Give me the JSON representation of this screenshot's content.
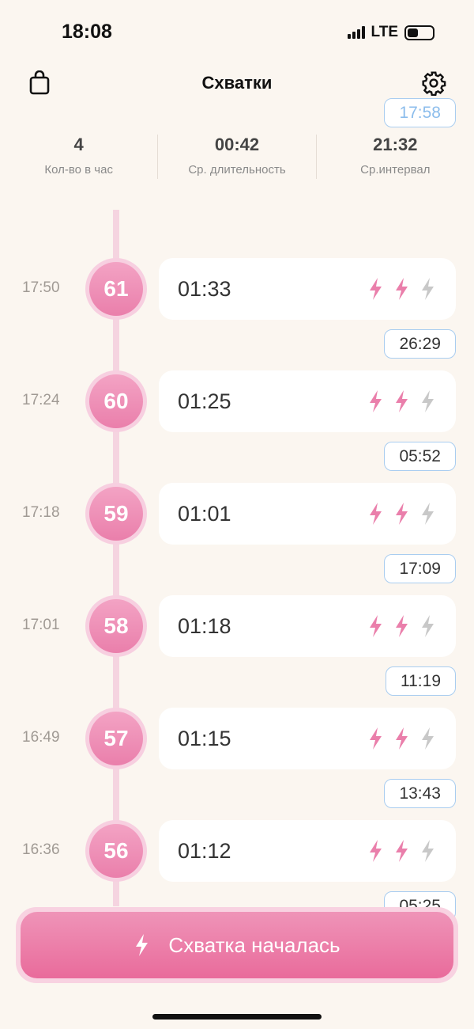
{
  "status_bar": {
    "time": "18:08",
    "network": "LTE"
  },
  "header": {
    "title": "Схватки",
    "left_icon": "shopping-bag-icon",
    "right_icon": "gear-icon"
  },
  "stats": [
    {
      "value": "4",
      "label": "Кол-во в час"
    },
    {
      "value": "00:42",
      "label": "Ср. длительность"
    },
    {
      "value": "21:32",
      "label": "Ср.интервал"
    }
  ],
  "current_interval": "17:58",
  "contractions": [
    {
      "time": "17:50",
      "number": "61",
      "duration": "01:33",
      "intensity": 2,
      "interval_after": "26:29"
    },
    {
      "time": "17:24",
      "number": "60",
      "duration": "01:25",
      "intensity": 2,
      "interval_after": "05:52"
    },
    {
      "time": "17:18",
      "number": "59",
      "duration": "01:01",
      "intensity": 2,
      "interval_after": "17:09"
    },
    {
      "time": "17:01",
      "number": "58",
      "duration": "01:18",
      "intensity": 2,
      "interval_after": "11:19"
    },
    {
      "time": "16:49",
      "number": "57",
      "duration": "01:15",
      "intensity": 2,
      "interval_after": "13:43"
    },
    {
      "time": "16:36",
      "number": "56",
      "duration": "01:12",
      "intensity": 2,
      "interval_after": "05:25"
    }
  ],
  "intensity_max": 3,
  "colors": {
    "accent": "#ea7fab",
    "inactive": "#c8c8c8",
    "interval_border": "#a9cdf0",
    "background": "#fbf6f0"
  },
  "action_button": {
    "label": "Схватка началась",
    "icon": "lightning-icon"
  }
}
